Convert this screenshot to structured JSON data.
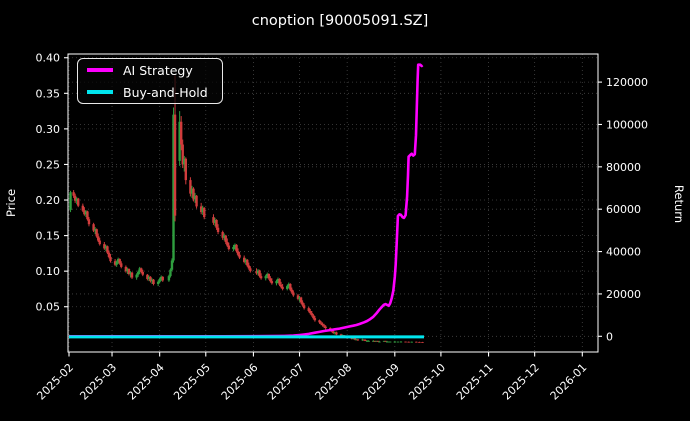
{
  "title": "cnoption [90005091.SZ]",
  "colors": {
    "background": "#000000",
    "foreground": "#ffffff",
    "grid": "#454545",
    "candle_up": "#2f9e3f",
    "candle_down": "#d03c3c",
    "ai_strategy": "#ff00ff",
    "buy_and_hold": "#00e5ee"
  },
  "legend": {
    "items": [
      {
        "label": "AI Strategy",
        "color": "#ff00ff"
      },
      {
        "label": "Buy-and-Hold",
        "color": "#00e5ee"
      }
    ]
  },
  "chart_data": {
    "type": "candlestick+line",
    "title": "cnoption [90005091.SZ]",
    "x_axis": {
      "tick_labels": [
        "2025-02",
        "2025-03",
        "2025-04",
        "2025-05",
        "2025-06",
        "2025-07",
        "2025-08",
        "2025-09",
        "2025-10",
        "2025-11",
        "2025-12",
        "2026-01"
      ],
      "tick_days": [
        0,
        28,
        59,
        89,
        120,
        150,
        181,
        212,
        242,
        273,
        303,
        334
      ],
      "day_origin": "2025-02-01",
      "range_days": [
        0,
        344
      ]
    },
    "y_left": {
      "label": "Price",
      "tick_labels": [
        "0.05",
        "0.10",
        "0.15",
        "0.20",
        "0.25",
        "0.30",
        "0.35",
        "0.40"
      ],
      "tick_values": [
        0.05,
        0.1,
        0.15,
        0.2,
        0.25,
        0.3,
        0.35,
        0.4
      ],
      "range": [
        -0.014,
        0.405
      ]
    },
    "y_right": {
      "label": "Return",
      "tick_labels": [
        "0",
        "20000",
        "40000",
        "60000",
        "80000",
        "100000",
        "120000"
      ],
      "tick_values": [
        0,
        20000,
        40000,
        60000,
        80000,
        100000,
        120000
      ],
      "range": [
        -7400,
        133000
      ]
    },
    "grid": "dotted",
    "legend_position": "upper-left",
    "candles_ohlc_by_day": [
      [
        1,
        0.186,
        0.213,
        0.183,
        0.211
      ],
      [
        3,
        0.211,
        0.214,
        0.203,
        0.206
      ],
      [
        4,
        0.206,
        0.209,
        0.196,
        0.199
      ],
      [
        5,
        0.199,
        0.204,
        0.194,
        0.202
      ],
      [
        6,
        0.202,
        0.203,
        0.19,
        0.192
      ],
      [
        9,
        0.192,
        0.195,
        0.183,
        0.185
      ],
      [
        10,
        0.185,
        0.19,
        0.178,
        0.18
      ],
      [
        11,
        0.18,
        0.186,
        0.176,
        0.184
      ],
      [
        12,
        0.184,
        0.185,
        0.171,
        0.173
      ],
      [
        13,
        0.173,
        0.176,
        0.163,
        0.166
      ],
      [
        16,
        0.166,
        0.168,
        0.155,
        0.157
      ],
      [
        17,
        0.157,
        0.162,
        0.152,
        0.159
      ],
      [
        18,
        0.159,
        0.16,
        0.147,
        0.149
      ],
      [
        19,
        0.149,
        0.153,
        0.141,
        0.143
      ],
      [
        20,
        0.143,
        0.147,
        0.136,
        0.138
      ],
      [
        23,
        0.138,
        0.141,
        0.13,
        0.132
      ],
      [
        24,
        0.132,
        0.137,
        0.128,
        0.135
      ],
      [
        25,
        0.135,
        0.136,
        0.124,
        0.126
      ],
      [
        26,
        0.126,
        0.129,
        0.118,
        0.12
      ],
      [
        27,
        0.12,
        0.124,
        0.112,
        0.114
      ],
      [
        30,
        0.114,
        0.117,
        0.107,
        0.109
      ],
      [
        31,
        0.109,
        0.115,
        0.106,
        0.113
      ],
      [
        32,
        0.113,
        0.119,
        0.11,
        0.117
      ],
      [
        33,
        0.117,
        0.118,
        0.109,
        0.111
      ],
      [
        34,
        0.111,
        0.114,
        0.104,
        0.106
      ],
      [
        37,
        0.106,
        0.108,
        0.098,
        0.1
      ],
      [
        38,
        0.1,
        0.105,
        0.096,
        0.103
      ],
      [
        39,
        0.103,
        0.104,
        0.094,
        0.096
      ],
      [
        40,
        0.096,
        0.1,
        0.091,
        0.098
      ],
      [
        41,
        0.098,
        0.099,
        0.089,
        0.091
      ],
      [
        44,
        0.091,
        0.097,
        0.088,
        0.095
      ],
      [
        45,
        0.095,
        0.101,
        0.092,
        0.099
      ],
      [
        46,
        0.099,
        0.106,
        0.096,
        0.104
      ],
      [
        47,
        0.104,
        0.105,
        0.097,
        0.099
      ],
      [
        48,
        0.099,
        0.102,
        0.093,
        0.095
      ],
      [
        51,
        0.095,
        0.096,
        0.087,
        0.089
      ],
      [
        52,
        0.089,
        0.094,
        0.086,
        0.092
      ],
      [
        53,
        0.092,
        0.093,
        0.084,
        0.086
      ],
      [
        54,
        0.086,
        0.09,
        0.082,
        0.088
      ],
      [
        55,
        0.088,
        0.089,
        0.08,
        0.082
      ],
      [
        58,
        0.082,
        0.087,
        0.079,
        0.085
      ],
      [
        59,
        0.085,
        0.091,
        0.083,
        0.089
      ],
      [
        60,
        0.089,
        0.094,
        0.086,
        0.092
      ],
      [
        61,
        0.092,
        0.093,
        0.085,
        0.087
      ],
      [
        65,
        0.087,
        0.095,
        0.085,
        0.093
      ],
      [
        66,
        0.093,
        0.104,
        0.091,
        0.102
      ],
      [
        67,
        0.102,
        0.118,
        0.1,
        0.115
      ],
      [
        68,
        0.115,
        0.33,
        0.112,
        0.32
      ],
      [
        69,
        0.32,
        0.375,
        0.17,
        0.178
      ],
      [
        72,
        0.255,
        0.325,
        0.248,
        0.31
      ],
      [
        73,
        0.31,
        0.318,
        0.27,
        0.278
      ],
      [
        74,
        0.278,
        0.285,
        0.245,
        0.25
      ],
      [
        75,
        0.25,
        0.262,
        0.24,
        0.258
      ],
      [
        76,
        0.258,
        0.26,
        0.222,
        0.228
      ],
      [
        79,
        0.228,
        0.232,
        0.205,
        0.209
      ],
      [
        80,
        0.209,
        0.22,
        0.203,
        0.216
      ],
      [
        81,
        0.216,
        0.218,
        0.198,
        0.201
      ],
      [
        82,
        0.201,
        0.21,
        0.196,
        0.206
      ],
      [
        83,
        0.206,
        0.207,
        0.188,
        0.191
      ],
      [
        86,
        0.191,
        0.196,
        0.18,
        0.183
      ],
      [
        87,
        0.183,
        0.192,
        0.179,
        0.189
      ],
      [
        88,
        0.189,
        0.19,
        0.173,
        0.176
      ],
      [
        94,
        0.176,
        0.18,
        0.165,
        0.168
      ],
      [
        95,
        0.168,
        0.175,
        0.163,
        0.172
      ],
      [
        96,
        0.172,
        0.173,
        0.158,
        0.161
      ],
      [
        97,
        0.161,
        0.166,
        0.152,
        0.155
      ],
      [
        100,
        0.155,
        0.157,
        0.144,
        0.147
      ],
      [
        101,
        0.147,
        0.153,
        0.143,
        0.15
      ],
      [
        102,
        0.15,
        0.151,
        0.138,
        0.141
      ],
      [
        103,
        0.141,
        0.146,
        0.134,
        0.136
      ],
      [
        104,
        0.136,
        0.14,
        0.129,
        0.131
      ],
      [
        107,
        0.131,
        0.137,
        0.128,
        0.134
      ],
      [
        108,
        0.134,
        0.139,
        0.13,
        0.137
      ],
      [
        109,
        0.137,
        0.138,
        0.126,
        0.128
      ],
      [
        110,
        0.128,
        0.132,
        0.121,
        0.123
      ],
      [
        111,
        0.123,
        0.127,
        0.117,
        0.119
      ],
      [
        114,
        0.119,
        0.122,
        0.111,
        0.113
      ],
      [
        115,
        0.113,
        0.118,
        0.109,
        0.116
      ],
      [
        116,
        0.116,
        0.117,
        0.106,
        0.108
      ],
      [
        117,
        0.108,
        0.112,
        0.102,
        0.104
      ],
      [
        118,
        0.104,
        0.107,
        0.098,
        0.1
      ],
      [
        122,
        0.1,
        0.104,
        0.095,
        0.097
      ],
      [
        123,
        0.097,
        0.103,
        0.094,
        0.101
      ],
      [
        124,
        0.101,
        0.102,
        0.091,
        0.093
      ],
      [
        125,
        0.093,
        0.097,
        0.088,
        0.09
      ],
      [
        128,
        0.09,
        0.095,
        0.087,
        0.093
      ],
      [
        129,
        0.093,
        0.098,
        0.09,
        0.096
      ],
      [
        130,
        0.096,
        0.097,
        0.088,
        0.09
      ],
      [
        131,
        0.09,
        0.093,
        0.084,
        0.086
      ],
      [
        132,
        0.086,
        0.09,
        0.081,
        0.083
      ],
      [
        135,
        0.083,
        0.088,
        0.08,
        0.086
      ],
      [
        136,
        0.086,
        0.091,
        0.083,
        0.089
      ],
      [
        137,
        0.089,
        0.09,
        0.079,
        0.081
      ],
      [
        138,
        0.081,
        0.085,
        0.076,
        0.078
      ],
      [
        139,
        0.078,
        0.082,
        0.073,
        0.075
      ],
      [
        142,
        0.075,
        0.081,
        0.073,
        0.079
      ],
      [
        143,
        0.079,
        0.084,
        0.076,
        0.082
      ],
      [
        144,
        0.082,
        0.083,
        0.072,
        0.074
      ],
      [
        145,
        0.074,
        0.077,
        0.068,
        0.07
      ],
      [
        146,
        0.07,
        0.073,
        0.064,
        0.066
      ],
      [
        149,
        0.066,
        0.068,
        0.059,
        0.061
      ],
      [
        150,
        0.061,
        0.065,
        0.057,
        0.063
      ],
      [
        151,
        0.063,
        0.064,
        0.054,
        0.056
      ],
      [
        152,
        0.056,
        0.059,
        0.05,
        0.052
      ],
      [
        153,
        0.052,
        0.055,
        0.046,
        0.048
      ],
      [
        156,
        0.048,
        0.05,
        0.042,
        0.044
      ],
      [
        157,
        0.044,
        0.047,
        0.039,
        0.041
      ],
      [
        158,
        0.041,
        0.044,
        0.036,
        0.038
      ],
      [
        159,
        0.038,
        0.04,
        0.032,
        0.034
      ],
      [
        160,
        0.034,
        0.037,
        0.029,
        0.031
      ],
      [
        163,
        0.031,
        0.032,
        0.026,
        0.028
      ],
      [
        164,
        0.028,
        0.03,
        0.024,
        0.026
      ],
      [
        165,
        0.026,
        0.028,
        0.022,
        0.024
      ],
      [
        166,
        0.024,
        0.026,
        0.02,
        0.022
      ],
      [
        167,
        0.022,
        0.024,
        0.018,
        0.02
      ],
      [
        170,
        0.02,
        0.021,
        0.016,
        0.017
      ],
      [
        171,
        0.017,
        0.019,
        0.014,
        0.015
      ],
      [
        172,
        0.015,
        0.017,
        0.012,
        0.013
      ],
      [
        173,
        0.013,
        0.015,
        0.011,
        0.014
      ],
      [
        174,
        0.014,
        0.015,
        0.01,
        0.011
      ],
      [
        177,
        0.011,
        0.012,
        0.008,
        0.009
      ],
      [
        178,
        0.009,
        0.011,
        0.007,
        0.01
      ],
      [
        179,
        0.01,
        0.01,
        0.007,
        0.008
      ],
      [
        180,
        0.008,
        0.009,
        0.006,
        0.007
      ],
      [
        181,
        0.007,
        0.008,
        0.005,
        0.006
      ],
      [
        184,
        0.006,
        0.007,
        0.004,
        0.005
      ],
      [
        185,
        0.005,
        0.007,
        0.004,
        0.006
      ],
      [
        186,
        0.006,
        0.006,
        0.003,
        0.004
      ],
      [
        187,
        0.004,
        0.005,
        0.003,
        0.004
      ],
      [
        188,
        0.004,
        0.005,
        0.002,
        0.003
      ],
      [
        191,
        0.003,
        0.005,
        0.002,
        0.004
      ],
      [
        192,
        0.004,
        0.004,
        0.002,
        0.003
      ],
      [
        193,
        0.003,
        0.004,
        0.002,
        0.002
      ],
      [
        194,
        0.002,
        0.003,
        0.001,
        0.002
      ],
      [
        195,
        0.002,
        0.003,
        0.001,
        0.002
      ],
      [
        198,
        0.002,
        0.003,
        0.001,
        0.002
      ],
      [
        199,
        0.002,
        0.002,
        0.001,
        0.001
      ],
      [
        200,
        0.001,
        0.002,
        0.001,
        0.002
      ],
      [
        201,
        0.002,
        0.002,
        0.001,
        0.001
      ],
      [
        202,
        0.001,
        0.002,
        0.001,
        0.001
      ],
      [
        205,
        0.001,
        0.002,
        0.001,
        0.002
      ],
      [
        206,
        0.002,
        0.002,
        0.001,
        0.001
      ],
      [
        207,
        0.001,
        0.002,
        0.001,
        0.001
      ],
      [
        208,
        0.001,
        0.001,
        0.0005,
        0.001
      ],
      [
        209,
        0.001,
        0.001,
        0.0005,
        0.001
      ],
      [
        212,
        0.001,
        0.002,
        0.001,
        0.001
      ],
      [
        214,
        0.001,
        0.001,
        0.0005,
        0.001
      ],
      [
        216,
        0.001,
        0.0015,
        0.0005,
        0.001
      ],
      [
        219,
        0.001,
        0.001,
        0.0005,
        0.0008
      ],
      [
        221,
        0.0008,
        0.001,
        0.0004,
        0.0006
      ],
      [
        223,
        0.0006,
        0.001,
        0.0004,
        0.0008
      ],
      [
        226,
        0.0008,
        0.001,
        0.0003,
        0.0005
      ],
      [
        228,
        0.0005,
        0.0008,
        0.0003,
        0.0004
      ],
      [
        230,
        0.0004,
        0.0006,
        0.0002,
        0.0003
      ]
    ],
    "series": [
      {
        "name": "AI Strategy",
        "axis": "right",
        "points_day_return": [
          [
            0,
            0
          ],
          [
            40,
            0
          ],
          [
            80,
            0
          ],
          [
            100,
            0
          ],
          [
            120,
            50
          ],
          [
            130,
            100
          ],
          [
            140,
            200
          ],
          [
            146,
            350
          ],
          [
            150,
            600
          ],
          [
            153,
            850
          ],
          [
            156,
            1150
          ],
          [
            160,
            1700
          ],
          [
            163,
            2100
          ],
          [
            166,
            2500
          ],
          [
            170,
            2950
          ],
          [
            173,
            3300
          ],
          [
            176,
            3650
          ],
          [
            179,
            4100
          ],
          [
            182,
            4600
          ],
          [
            185,
            5000
          ],
          [
            187,
            5350
          ],
          [
            189,
            5800
          ],
          [
            192,
            6600
          ],
          [
            194,
            7200
          ],
          [
            196,
            8100
          ],
          [
            198,
            9200
          ],
          [
            200,
            10800
          ],
          [
            202,
            12600
          ],
          [
            204,
            14200
          ],
          [
            205,
            14900
          ],
          [
            206,
            15200
          ],
          [
            207,
            14800
          ],
          [
            208,
            14400
          ],
          [
            209,
            15600
          ],
          [
            210,
            18000
          ],
          [
            211,
            21500
          ],
          [
            212,
            28000
          ],
          [
            212.6,
            34000
          ],
          [
            213.2,
            44000
          ],
          [
            214,
            56800
          ],
          [
            215,
            57600
          ],
          [
            216,
            57300
          ],
          [
            217,
            56200
          ],
          [
            218,
            55900
          ],
          [
            219,
            57200
          ],
          [
            220,
            66000
          ],
          [
            220.6,
            76000
          ],
          [
            221,
            84800
          ],
          [
            222,
            85600
          ],
          [
            223,
            86200
          ],
          [
            224,
            85300
          ],
          [
            225,
            85900
          ],
          [
            225.8,
            95000
          ],
          [
            226.3,
            108000
          ],
          [
            226.8,
            121000
          ],
          [
            227.2,
            128200
          ],
          [
            228.5,
            128200
          ],
          [
            229.5,
            127600
          ],
          [
            230,
            128000
          ]
        ],
        "final_value": 128000
      },
      {
        "name": "Buy-and-Hold",
        "axis": "right",
        "points_day_return": [
          [
            0,
            -300
          ],
          [
            231,
            -300
          ]
        ],
        "final_value": -300
      }
    ]
  }
}
